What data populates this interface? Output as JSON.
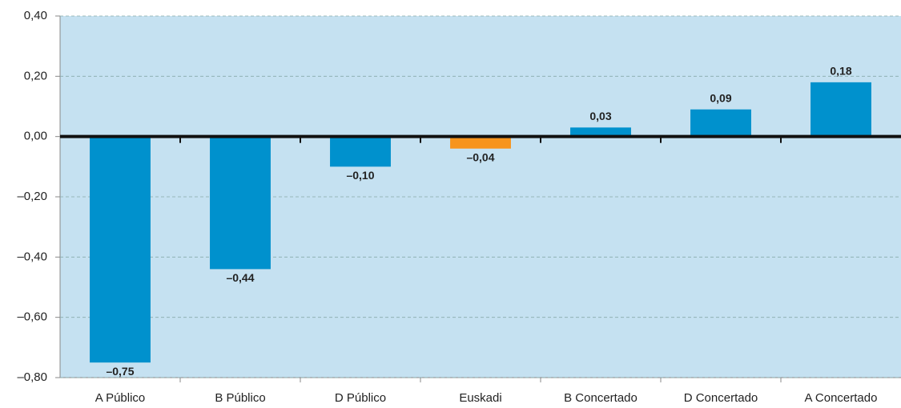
{
  "chart_data": {
    "type": "bar",
    "categories": [
      "A Público",
      "B Público",
      "D Público",
      "Euskadi",
      "B Concertado",
      "D Concertado",
      "A Concertado"
    ],
    "values": [
      -0.75,
      -0.44,
      -0.1,
      -0.04,
      0.03,
      0.09,
      0.18
    ],
    "value_labels": [
      "–0,75",
      "–0,44",
      "–0,10",
      "–0,04",
      "0,03",
      "0,09",
      "0,18"
    ],
    "colors": [
      "#0091cd",
      "#0091cd",
      "#0091cd",
      "#f7941d",
      "#0091cd",
      "#0091cd",
      "#0091cd"
    ],
    "ylim": [
      -0.8,
      0.4
    ],
    "yticks": [
      {
        "value": -0.8,
        "label": "–0,80"
      },
      {
        "value": -0.6,
        "label": "–0,60"
      },
      {
        "value": -0.4,
        "label": "–0,40"
      },
      {
        "value": -0.2,
        "label": "–0,20"
      },
      {
        "value": 0,
        "label": "0,00"
      },
      {
        "value": 0.2,
        "label": "0,20"
      },
      {
        "value": 0.4,
        "label": "0,40"
      }
    ],
    "grid": true
  }
}
